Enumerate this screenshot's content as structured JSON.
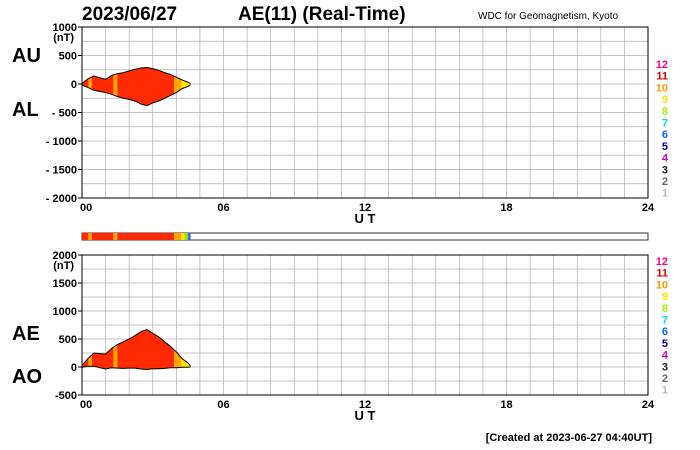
{
  "header": {
    "date": "2023/06/27",
    "title": "AE(11) (Real-Time)",
    "source": "WDC for Geomagnetism, Kyoto",
    "created": "[Created at 2023-06-27 04:40UT]"
  },
  "legend": {
    "labels": [
      "12",
      "11",
      "10",
      "9",
      "8",
      "7",
      "6",
      "5",
      "4",
      "3",
      "2",
      "1"
    ],
    "colors": [
      "#ff0080",
      "#e00000",
      "#ff9900",
      "#ffe000",
      "#aaee00",
      "#00dddd",
      "#0066ff",
      "#0000aa",
      "#cc00cc",
      "#222222",
      "#666666",
      "#bbbbbb"
    ]
  },
  "fill_colors": {
    "main": "#ff2a00",
    "band": "#ffa500",
    "tail": "#ffe600",
    "edge": "#99dd00",
    "end": "#3355ff"
  },
  "station_bar": {
    "segments": [
      {
        "from": 0.0,
        "to": 0.27,
        "color": "#ff2a00"
      },
      {
        "from": 0.27,
        "to": 0.42,
        "color": "#ffa500"
      },
      {
        "from": 0.42,
        "to": 1.33,
        "color": "#ff2a00"
      },
      {
        "from": 1.33,
        "to": 1.5,
        "color": "#ffa500"
      },
      {
        "from": 1.5,
        "to": 3.9,
        "color": "#ff2a00"
      },
      {
        "from": 3.9,
        "to": 4.2,
        "color": "#ffa500"
      },
      {
        "from": 4.2,
        "to": 4.35,
        "color": "#ffe600"
      },
      {
        "from": 4.35,
        "to": 4.5,
        "color": "#99dd00"
      },
      {
        "from": 4.5,
        "to": 4.6,
        "color": "#3355ff"
      }
    ]
  },
  "chart_data": [
    {
      "type": "area",
      "panel": "AU/AL",
      "side_labels": [
        "AU",
        "AL"
      ],
      "xlabel": "U T",
      "ylabel": "(nT)",
      "xlim": [
        0,
        24
      ],
      "ylim": [
        -2000,
        1000
      ],
      "xticks": [
        0,
        6,
        12,
        18,
        24
      ],
      "xtick_labels": [
        "00",
        "06",
        "12",
        "18",
        "24"
      ],
      "yticks": [
        1000,
        500,
        0,
        -500,
        -1000,
        -1500,
        -2000
      ],
      "ytick_labels": [
        "1000",
        "500",
        "0",
        "- 500",
        "- 1000",
        "- 1500",
        "- 2000"
      ],
      "grid": true,
      "x": [
        0.0,
        0.25,
        0.5,
        0.75,
        1.0,
        1.25,
        1.5,
        1.75,
        2.0,
        2.25,
        2.5,
        2.75,
        3.0,
        3.25,
        3.5,
        3.75,
        4.0,
        4.25,
        4.5,
        4.6
      ],
      "series": [
        {
          "name": "AU",
          "values": [
            10,
            90,
            140,
            110,
            80,
            150,
            180,
            200,
            230,
            260,
            280,
            290,
            270,
            240,
            200,
            170,
            120,
            70,
            30,
            10
          ]
        },
        {
          "name": "AL",
          "values": [
            -20,
            -60,
            -110,
            -130,
            -150,
            -180,
            -220,
            -250,
            -270,
            -300,
            -350,
            -380,
            -330,
            -300,
            -250,
            -200,
            -150,
            -80,
            -40,
            -10
          ]
        }
      ]
    },
    {
      "type": "area",
      "panel": "AE/AO",
      "side_labels": [
        "AE",
        "AO"
      ],
      "xlabel": "U T",
      "ylabel": "(nT)",
      "xlim": [
        0,
        24
      ],
      "ylim": [
        -500,
        2000
      ],
      "xticks": [
        0,
        6,
        12,
        18,
        24
      ],
      "xtick_labels": [
        "00",
        "06",
        "12",
        "18",
        "24"
      ],
      "yticks": [
        2000,
        1500,
        1000,
        500,
        0,
        -500
      ],
      "ytick_labels": [
        "2000",
        "1500",
        "1000",
        "500",
        "0",
        "-500"
      ],
      "grid": true,
      "x": [
        0.0,
        0.25,
        0.5,
        0.75,
        1.0,
        1.25,
        1.5,
        1.75,
        2.0,
        2.25,
        2.5,
        2.75,
        3.0,
        3.25,
        3.5,
        3.75,
        4.0,
        4.25,
        4.5,
        4.6
      ],
      "series": [
        {
          "name": "AE",
          "values": [
            30,
            150,
            250,
            240,
            230,
            330,
            400,
            450,
            500,
            560,
            630,
            670,
            600,
            540,
            450,
            370,
            270,
            150,
            70,
            20
          ]
        },
        {
          "name": "AO",
          "values": [
            -5,
            15,
            15,
            -10,
            -35,
            -15,
            -20,
            -25,
            -20,
            -20,
            -35,
            -45,
            -30,
            -30,
            -25,
            -15,
            -15,
            -5,
            -5,
            0
          ]
        }
      ]
    }
  ]
}
